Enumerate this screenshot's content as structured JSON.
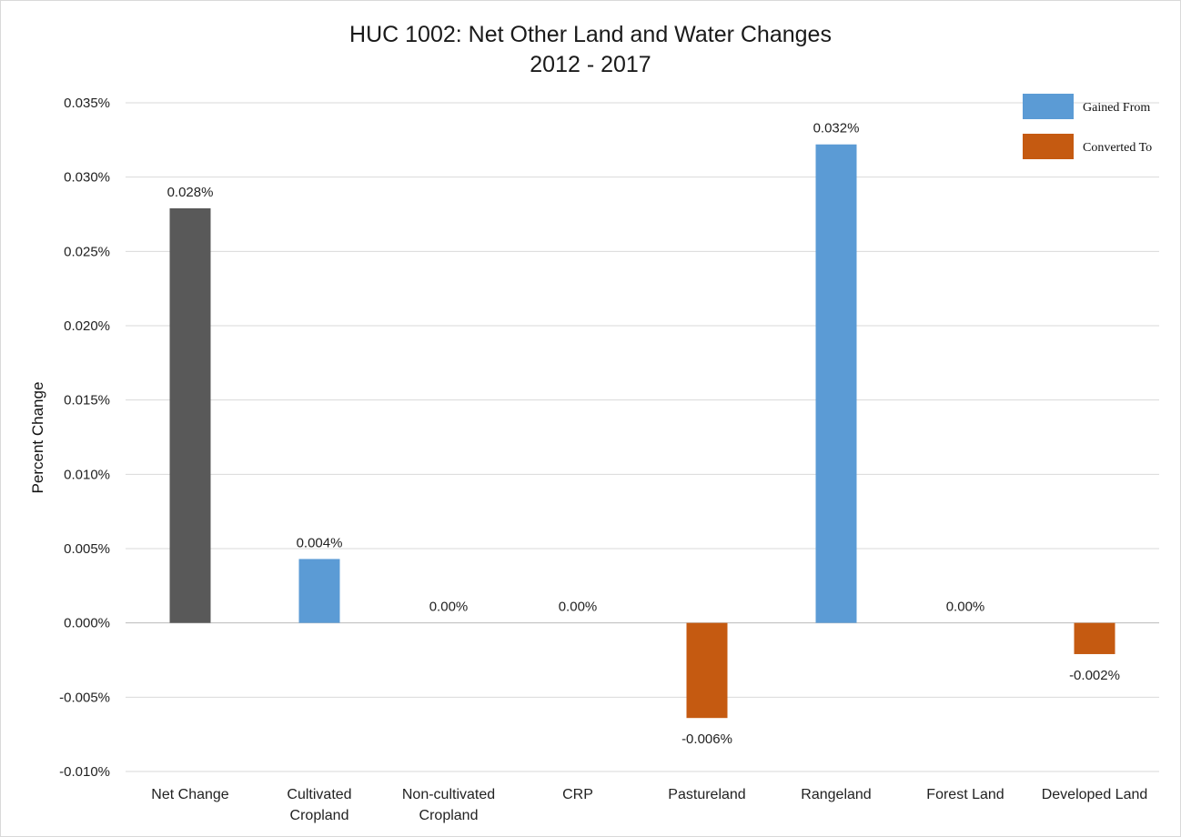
{
  "chart_data": {
    "type": "bar",
    "title_line1": "HUC 1002: Net Other Land and Water Changes",
    "title_line2": "2012 - 2017",
    "ylabel": "Percent Change",
    "ylim": [
      -0.01,
      0.035
    ],
    "yticks": [
      0.035,
      0.03,
      0.025,
      0.02,
      0.015,
      0.01,
      0.005,
      0.0,
      -0.005,
      -0.01
    ],
    "ytick_labels": [
      "0.035%",
      "0.030%",
      "0.025%",
      "0.020%",
      "0.015%",
      "0.010%",
      "0.005%",
      "0.000%",
      "-0.005%",
      "-0.010%"
    ],
    "grid": true,
    "legend_position": "top-right",
    "legend": [
      {
        "name": "Gained From",
        "color": "#5b9bd5"
      },
      {
        "name": "Converted To",
        "color": "#c55a11"
      }
    ],
    "colors": {
      "net": "#595959",
      "gained": "#5b9bd5",
      "converted": "#c55a11"
    },
    "categories": [
      {
        "lines": [
          "Net Change"
        ],
        "value": 0.0279,
        "label": "0.028%",
        "kind": "net"
      },
      {
        "lines": [
          "Cultivated",
          "Cropland"
        ],
        "value": 0.0043,
        "label": "0.004%",
        "kind": "gained"
      },
      {
        "lines": [
          "Non-cultivated",
          "Cropland"
        ],
        "value": 0.0,
        "label": "0.00%",
        "kind": "gained"
      },
      {
        "lines": [
          "CRP"
        ],
        "value": 0.0,
        "label": "0.00%",
        "kind": "gained"
      },
      {
        "lines": [
          "Pastureland"
        ],
        "value": -0.0064,
        "label": "-0.006%",
        "kind": "converted"
      },
      {
        "lines": [
          "Rangeland"
        ],
        "value": 0.0322,
        "label": "0.032%",
        "kind": "gained"
      },
      {
        "lines": [
          "Forest Land"
        ],
        "value": 0.0,
        "label": "0.00%",
        "kind": "gained"
      },
      {
        "lines": [
          "Developed Land"
        ],
        "value": -0.0021,
        "label": "-0.002%",
        "kind": "converted"
      }
    ]
  }
}
